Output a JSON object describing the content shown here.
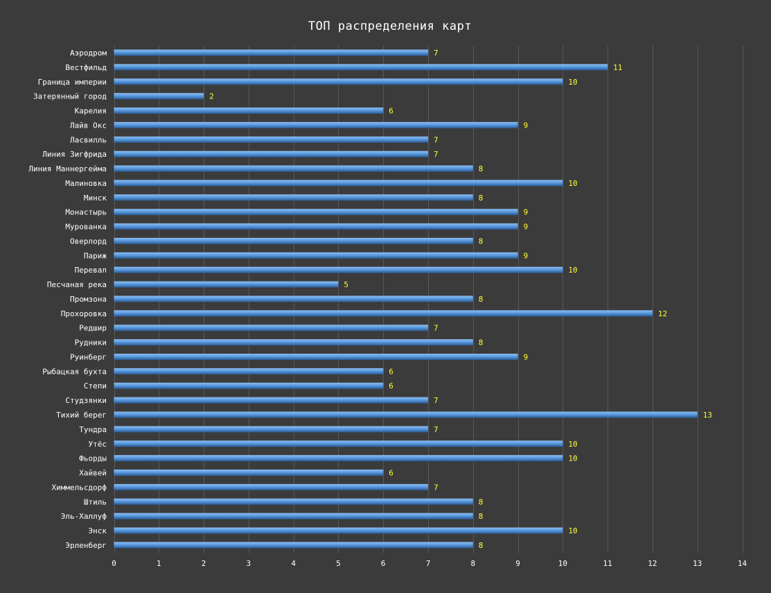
{
  "chart_data": {
    "type": "bar",
    "orientation": "horizontal",
    "title": "ТОП распределения карт",
    "xlabel": "",
    "ylabel": "",
    "xlim": [
      0,
      14
    ],
    "ticks": [
      0,
      1,
      2,
      3,
      4,
      5,
      6,
      7,
      8,
      9,
      10,
      11,
      12,
      13,
      14
    ],
    "grid": "vertical",
    "legend": "none",
    "categories": [
      "Аэродром",
      "Вестфильд",
      "Граница империи",
      "Затерянный город",
      "Карелия",
      "Лайв Окс",
      "Ласвилль",
      "Линия Зигфрида",
      "Линия Маннергейма",
      "Малиновка",
      "Минск",
      "Монастырь",
      "Мурованка",
      "Оверлорд",
      "Париж",
      "Перевал",
      "Песчаная река",
      "Промзона",
      "Прохоровка",
      "Редшир",
      "Рудники",
      "Руинберг",
      "Рыбацкая бухта",
      "Степи",
      "Студзянки",
      "Тихий берег",
      "Тундра",
      "Утёс",
      "Фьорды",
      "Хайвей",
      "Химмельсдорф",
      "Штиль",
      "Эль-Халлуф",
      "Энск",
      "Эрленберг"
    ],
    "values": [
      7,
      11,
      10,
      2,
      6,
      9,
      7,
      7,
      8,
      10,
      8,
      9,
      9,
      8,
      9,
      10,
      5,
      8,
      12,
      7,
      8,
      9,
      6,
      6,
      7,
      13,
      7,
      10,
      10,
      6,
      7,
      8,
      8,
      10,
      8
    ],
    "colors": {
      "background": "#3b3b3b",
      "bar": "#5b9be0",
      "bar_highlight": "#8cbdf0",
      "bar_shadow": "#2a5a94",
      "grid": "#595959",
      "category_text": "#ffffff",
      "value_text": "#ffff3a",
      "title_text": "#ffffff"
    }
  }
}
